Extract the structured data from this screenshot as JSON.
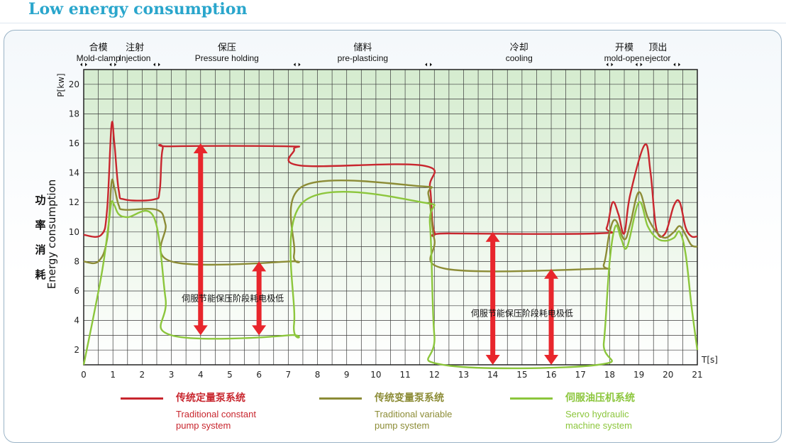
{
  "page": {
    "title": "Low energy consumption"
  },
  "chart_data": {
    "type": "line",
    "ylabel_cn": [
      "功",
      "率",
      "消",
      "耗"
    ],
    "ylabel_en": "Energy consumption",
    "yunit": "P[kw]",
    "xunit": "T[s]",
    "xlim": [
      0,
      21
    ],
    "ylim": [
      1,
      21
    ],
    "xticks": [
      0,
      1,
      2,
      3,
      4,
      5,
      6,
      7,
      8,
      9,
      10,
      11,
      12,
      13,
      14,
      15,
      16,
      17,
      18,
      19,
      20,
      21
    ],
    "yticks": [
      2,
      4,
      6,
      8,
      10,
      12,
      14,
      16,
      18,
      20
    ],
    "grid": true,
    "phases": [
      {
        "cn": "合模",
        "en": "Mold-clamp",
        "start": 0,
        "end": 1
      },
      {
        "cn": "注射",
        "en": "Injection",
        "start": 1,
        "end": 2.5
      },
      {
        "cn": "保压",
        "en": "Pressure holding",
        "start": 2.5,
        "end": 7.3
      },
      {
        "cn": "储料",
        "en": "pre-plasticing",
        "start": 7.3,
        "end": 11.8
      },
      {
        "cn": "冷却",
        "en": "cooling",
        "start": 11.8,
        "end": 18
      },
      {
        "cn": "开模",
        "en": "mold-open",
        "start": 18,
        "end": 19
      },
      {
        "cn": "顶出",
        "en": "ejector",
        "start": 19,
        "end": 20.3
      }
    ],
    "series": [
      {
        "name": "传统定量泵系统",
        "name_en": "Traditional constant\npump system",
        "color": "#c8262e",
        "x": [
          0,
          0.6,
          0.8,
          0.95,
          1.05,
          1.2,
          1.4,
          2.4,
          2.6,
          2.7,
          3,
          7,
          7.2,
          7.4,
          11.6,
          11.85,
          12,
          12.5,
          17.6,
          17.9,
          18.1,
          18.3,
          18.5,
          18.7,
          19.2,
          19.4,
          19.6,
          19.9,
          20.2,
          20.4,
          20.6,
          20.8,
          21
        ],
        "y": [
          9.8,
          9.8,
          11.5,
          17.2,
          16,
          12.8,
          12.2,
          12.2,
          12.8,
          15.6,
          15.8,
          15.8,
          15.6,
          14.5,
          14.5,
          13,
          10,
          9.9,
          9.9,
          10.3,
          12,
          11.2,
          9.9,
          12.5,
          15.9,
          14,
          10.2,
          9.9,
          11.8,
          12,
          10.3,
          9.7,
          9.7
        ]
      },
      {
        "name": "传统变量泵系统",
        "name_en": "Traditional variable\npump system",
        "color": "#8c8c36",
        "x": [
          0,
          0.5,
          0.8,
          0.95,
          1.05,
          1.2,
          1.4,
          2.5,
          2.8,
          3,
          7,
          7.2,
          7.5,
          11.5,
          11.8,
          12,
          12.4,
          17.5,
          17.8,
          18,
          18.2,
          18.5,
          18.7,
          19,
          19.3,
          19.6,
          19.9,
          20.2,
          20.4,
          20.6,
          20.8,
          21
        ],
        "y": [
          8,
          8,
          9.5,
          13.3,
          13,
          11.8,
          11.5,
          11.5,
          10.5,
          8,
          8,
          8.5,
          13.1,
          13.1,
          12.5,
          9.5,
          7.5,
          7.5,
          7.8,
          10,
          10.8,
          9.5,
          10.5,
          12.7,
          11,
          10,
          9.6,
          10,
          10.4,
          9.8,
          9.1,
          9
        ]
      },
      {
        "name": "伺服油压机系统",
        "name_en": "Servo hydraulic\nmachine system",
        "color": "#8cc63c",
        "x": [
          0,
          0.6,
          0.85,
          0.95,
          1.05,
          1.2,
          1.5,
          2.4,
          2.8,
          3,
          7,
          7.2,
          7.5,
          11.6,
          11.85,
          12,
          12.3,
          17.6,
          17.8,
          18,
          18.2,
          18.4,
          18.6,
          19,
          19.3,
          19.6,
          19.9,
          20.2,
          20.4,
          20.6,
          20.8,
          21
        ],
        "y": [
          1,
          7,
          10.5,
          12,
          11.8,
          11.2,
          11,
          11,
          5.5,
          3,
          3,
          3.8,
          12,
          12,
          10.5,
          3,
          1,
          1,
          2.5,
          8,
          10.4,
          9.5,
          9,
          12,
          10.4,
          9.6,
          9.4,
          9.6,
          10,
          8.5,
          5,
          2
        ]
      }
    ],
    "annotations": [
      {
        "text": "伺服节能保压阶段耗电极低",
        "anchor_x": 5.1,
        "anchor_y": 5.3
      },
      {
        "text": "伺服节能保压阶段耗电极低",
        "anchor_x": 15,
        "anchor_y": 4.3
      }
    ],
    "double_arrows": [
      {
        "x": 4,
        "y1": 3,
        "y2": 16
      },
      {
        "x": 6,
        "y1": 3,
        "y2": 8
      },
      {
        "x": 14,
        "y1": 1,
        "y2": 10
      },
      {
        "x": 16,
        "y1": 1,
        "y2": 7.5
      }
    ]
  }
}
